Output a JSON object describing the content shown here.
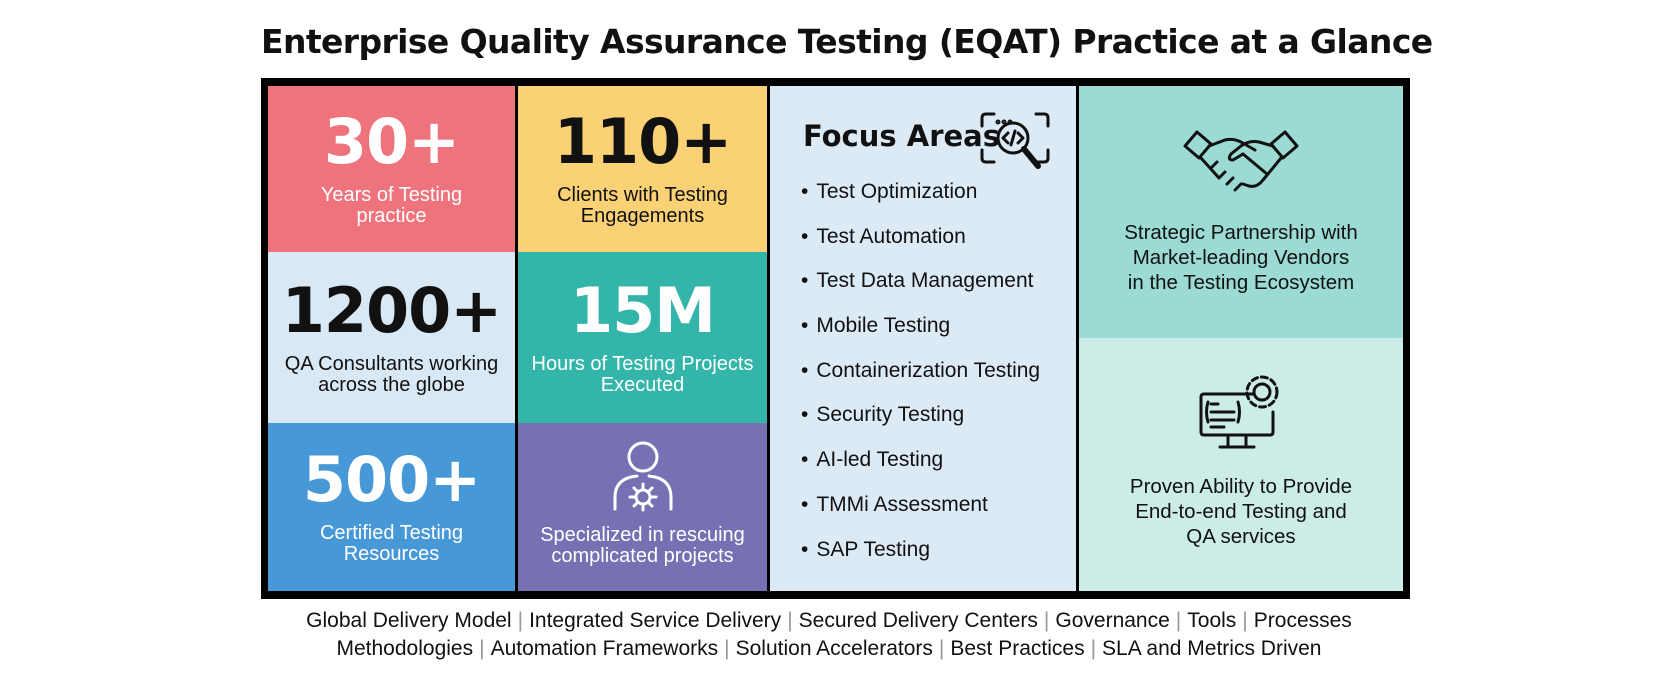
{
  "title": "Enterprise Quality Assurance Testing (EQAT) Practice at a Glance",
  "stats": {
    "years": {
      "value": "30+",
      "label_line1": "Years of Testing",
      "label_line2": "practice",
      "color": "#EF737C"
    },
    "clients": {
      "value": "110+",
      "label_line1": "Clients with Testing",
      "label_line2": "Engagements",
      "color": "#FBD176"
    },
    "consultants": {
      "value": "1200+",
      "label_line1": "QA Consultants working",
      "label_line2": "across the globe",
      "color": "#D8E8F4"
    },
    "hours": {
      "value": "15M",
      "label_line1": "Hours of Testing Projects",
      "label_line2": "Executed",
      "color": "#33B5A9"
    },
    "resources": {
      "value": "500+",
      "label_line1": "Certified Testing",
      "label_line2": "Resources",
      "color": "#4798D6"
    },
    "rescue": {
      "icon": "person-gear-icon",
      "label_line1": "Specialized in rescuing",
      "label_line2": "complicated projects",
      "color": "#7571B2"
    }
  },
  "focus": {
    "title": "Focus Areas",
    "icon": "code-search-icon",
    "bg": "#DCEAF6",
    "items": [
      "Test Optimization",
      "Test Automation",
      "Test Data Management",
      "Mobile Testing",
      "Containerization Testing",
      "Security Testing",
      "AI-led Testing",
      "TMMi Assessment",
      "SAP Testing"
    ]
  },
  "partnership": {
    "icon": "handshake-icon",
    "line1": "Strategic Partnership with",
    "line2": "Market-leading Vendors",
    "line3": "in the Testing Ecosystem",
    "color": "#9BDBD3"
  },
  "ability": {
    "icon": "monitor-gear-icon",
    "line1": "Proven Ability to Provide",
    "line2": "End-to-end Testing and",
    "line3": "QA services",
    "color": "#CCECE7"
  },
  "footer": {
    "row1": [
      "Global Delivery Model",
      "Integrated Service Delivery",
      "Secured Delivery Centers",
      "Governance",
      "Tools",
      "Processes"
    ],
    "row2": [
      "Methodologies",
      "Automation Frameworks",
      "Solution Accelerators",
      "Best Practices",
      "SLA and Metrics Driven"
    ]
  }
}
